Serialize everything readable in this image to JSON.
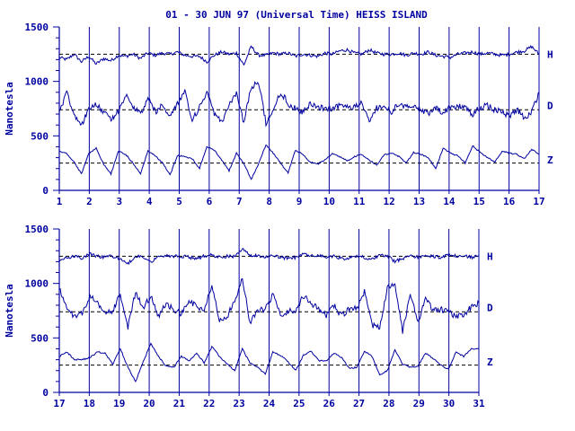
{
  "figure": {
    "title": "01 - 30 JUN 97 (Universal Time) HEISS ISLAND",
    "color": "#0000a0"
  },
  "chart_data": [
    {
      "type": "line",
      "title": "01 - 30 JUN 97 (Universal Time) HEISS ISLAND",
      "ylabel": "Nanotesla",
      "xlabel": "",
      "x_ticks": [
        "1",
        "2",
        "3",
        "4",
        "5",
        "6",
        "7",
        "8",
        "9",
        "10",
        "11",
        "12",
        "13",
        "14",
        "15",
        "16",
        "17"
      ],
      "xlim": [
        1,
        17
      ],
      "ylim": [
        0,
        1500
      ],
      "y_ticks": [
        0,
        500,
        1000,
        1500
      ],
      "grid": "vertical day lines",
      "series": [
        {
          "name": "H",
          "baseline": 1250,
          "values": [
            1220,
            1200,
            1250,
            1180,
            1230,
            1160,
            1210,
            1190,
            1240,
            1230,
            1250,
            1210,
            1260,
            1240,
            1260,
            1250,
            1270,
            1240,
            1230,
            1230,
            1180,
            1240,
            1270,
            1250,
            1260,
            1150,
            1320,
            1240,
            1240,
            1260,
            1250,
            1260,
            1230,
            1250,
            1240,
            1230,
            1260,
            1250,
            1280,
            1290,
            1260,
            1250,
            1290,
            1260,
            1250,
            1250,
            1260,
            1240,
            1260,
            1250,
            1270,
            1240,
            1230,
            1220,
            1250,
            1260,
            1270,
            1250,
            1260,
            1250,
            1240,
            1250,
            1270,
            1280,
            1320,
            1250
          ]
        },
        {
          "name": "D",
          "baseline": 740,
          "values": [
            720,
            900,
            700,
            600,
            750,
            800,
            720,
            650,
            730,
            880,
            760,
            700,
            850,
            720,
            780,
            680,
            800,
            900,
            650,
            760,
            900,
            700,
            620,
            780,
            900,
            620,
            950,
            1000,
            620,
            740,
            900,
            800,
            750,
            720,
            800,
            760,
            760,
            740,
            780,
            780,
            760,
            800,
            620,
            760,
            760,
            720,
            800,
            760,
            780,
            740,
            700,
            750,
            720,
            760,
            770,
            760,
            700,
            760,
            780,
            740,
            720,
            680,
            740,
            660,
            720,
            900
          ]
        },
        {
          "name": "Z",
          "baseline": 250,
          "values": [
            360,
            340,
            260,
            150,
            340,
            390,
            240,
            150,
            360,
            330,
            250,
            150,
            360,
            320,
            250,
            140,
            320,
            310,
            290,
            200,
            400,
            370,
            280,
            180,
            340,
            250,
            100,
            240,
            420,
            340,
            250,
            160,
            370,
            330,
            260,
            240,
            280,
            340,
            310,
            270,
            310,
            330,
            280,
            230,
            330,
            340,
            310,
            250,
            350,
            330,
            300,
            200,
            390,
            340,
            320,
            250,
            410,
            350,
            300,
            260,
            360,
            340,
            330,
            290,
            380,
            330
          ]
        }
      ],
      "components": [
        "H",
        "D",
        "Z"
      ]
    },
    {
      "type": "line",
      "title": "",
      "ylabel": "Nanotesla",
      "xlabel": "",
      "x_ticks": [
        "17",
        "18",
        "19",
        "20",
        "21",
        "22",
        "23",
        "24",
        "25",
        "26",
        "27",
        "28",
        "29",
        "30",
        "31"
      ],
      "xlim": [
        17,
        31
      ],
      "ylim": [
        0,
        1500
      ],
      "y_ticks": [
        0,
        500,
        1000,
        1500
      ],
      "grid": "vertical day lines",
      "series": [
        {
          "name": "H",
          "baseline": 1250,
          "values": [
            1200,
            1240,
            1250,
            1230,
            1270,
            1250,
            1240,
            1250,
            1220,
            1180,
            1250,
            1240,
            1200,
            1250,
            1260,
            1250,
            1250,
            1240,
            1230,
            1250,
            1260,
            1240,
            1250,
            1250,
            1320,
            1250,
            1260,
            1240,
            1250,
            1240,
            1230,
            1240,
            1270,
            1250,
            1260,
            1240,
            1250,
            1230,
            1230,
            1250,
            1240,
            1220,
            1260,
            1250,
            1200,
            1230,
            1260,
            1240,
            1250,
            1250,
            1240,
            1260,
            1250,
            1250,
            1240,
            1250
          ]
        },
        {
          "name": "D",
          "baseline": 740,
          "values": [
            950,
            760,
            700,
            720,
            880,
            820,
            720,
            750,
            900,
            600,
            920,
            780,
            880,
            700,
            820,
            760,
            720,
            840,
            790,
            760,
            980,
            660,
            700,
            840,
            1050,
            640,
            760,
            760,
            900,
            700,
            740,
            760,
            880,
            820,
            760,
            700,
            800,
            700,
            760,
            780,
            920,
            620,
            600,
            960,
            980,
            560,
            900,
            640,
            860,
            760,
            760,
            740,
            700,
            720,
            780,
            820
          ]
        },
        {
          "name": "Z",
          "baseline": 250,
          "values": [
            330,
            370,
            300,
            300,
            320,
            370,
            360,
            260,
            400,
            230,
            100,
            280,
            450,
            330,
            240,
            230,
            330,
            290,
            360,
            270,
            420,
            330,
            260,
            200,
            400,
            270,
            230,
            170,
            370,
            340,
            280,
            200,
            340,
            380,
            290,
            290,
            360,
            320,
            220,
            230,
            380,
            330,
            160,
            200,
            390,
            260,
            230,
            240,
            360,
            310,
            250,
            210,
            370,
            330,
            400,
            400
          ]
        }
      ],
      "components": [
        "H",
        "D",
        "Z"
      ]
    }
  ]
}
